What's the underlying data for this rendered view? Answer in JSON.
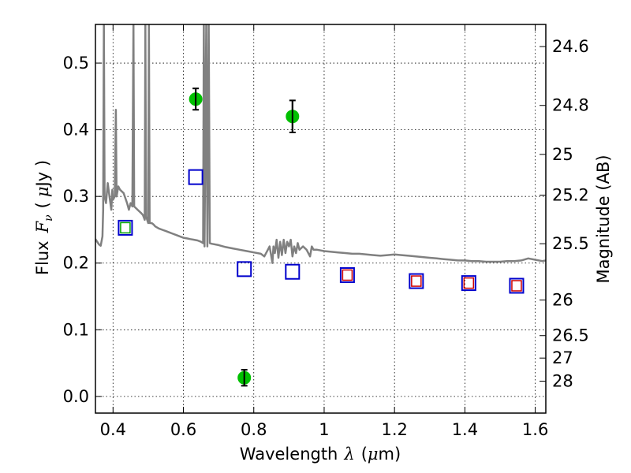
{
  "chart_data": {
    "type": "scatter",
    "xlabel_text": "Wavelength",
    "xlabel_symbol": "λ",
    "xlabel_unit_open": "(",
    "xlabel_unit_mu": "μ",
    "xlabel_unit_rest": "m)",
    "ylabel_text": "Flux",
    "ylabel_symbol": "F",
    "ylabel_sub": "ν",
    "ylabel_unit_open": "(",
    "ylabel_unit_mu": "μ",
    "ylabel_unit_rest": "Jy )",
    "y2label": "Magnitude (AB)",
    "xlim": [
      0.35,
      1.63
    ],
    "ylim": [
      -0.025,
      0.558
    ],
    "grid": true,
    "x_ticks": [
      {
        "value": 0.4,
        "label": "0.4"
      },
      {
        "value": 0.6,
        "label": "0.6"
      },
      {
        "value": 0.8,
        "label": "0.8"
      },
      {
        "value": 1.0,
        "label": "1"
      },
      {
        "value": 1.2,
        "label": "1.2"
      },
      {
        "value": 1.4,
        "label": "1.4"
      },
      {
        "value": 1.6,
        "label": "1.6"
      }
    ],
    "y_ticks": [
      {
        "value": 0.0,
        "label": "0.0"
      },
      {
        "value": 0.1,
        "label": "0.1"
      },
      {
        "value": 0.2,
        "label": "0.2"
      },
      {
        "value": 0.3,
        "label": "0.3"
      },
      {
        "value": 0.4,
        "label": "0.4"
      },
      {
        "value": 0.5,
        "label": "0.5"
      }
    ],
    "y2_ticks": [
      {
        "value": 24.6,
        "label": "24.6"
      },
      {
        "value": 24.8,
        "label": "24.8"
      },
      {
        "value": 25.0,
        "label": "25"
      },
      {
        "value": 25.2,
        "label": "25.2"
      },
      {
        "value": 25.5,
        "label": "25.5"
      },
      {
        "value": 26.0,
        "label": "26"
      },
      {
        "value": 26.5,
        "label": "26.5"
      },
      {
        "value": 27.0,
        "label": "27"
      },
      {
        "value": 28.0,
        "label": "28"
      }
    ],
    "series": [
      {
        "type": "line",
        "color": "#808080",
        "points": [
          [
            0.35,
            0.236
          ],
          [
            0.36,
            0.228
          ],
          [
            0.365,
            0.226
          ],
          [
            0.37,
            0.24
          ],
          [
            0.372,
            0.28
          ],
          [
            0.374,
            0.56
          ],
          [
            0.376,
            0.3
          ],
          [
            0.38,
            0.29
          ],
          [
            0.385,
            0.32
          ],
          [
            0.39,
            0.3
          ],
          [
            0.395,
            0.28
          ],
          [
            0.398,
            0.31
          ],
          [
            0.4,
            0.295
          ],
          [
            0.405,
            0.3
          ],
          [
            0.408,
            0.43
          ],
          [
            0.41,
            0.3
          ],
          [
            0.415,
            0.315
          ],
          [
            0.42,
            0.31
          ],
          [
            0.43,
            0.305
          ],
          [
            0.44,
            0.29
          ],
          [
            0.445,
            0.28
          ],
          [
            0.45,
            0.29
          ],
          [
            0.455,
            0.285
          ],
          [
            0.458,
            0.56
          ],
          [
            0.46,
            0.285
          ],
          [
            0.47,
            0.28
          ],
          [
            0.48,
            0.275
          ],
          [
            0.485,
            0.272
          ],
          [
            0.49,
            0.265
          ],
          [
            0.492,
            0.56
          ],
          [
            0.494,
            0.27
          ],
          [
            0.5,
            0.26
          ],
          [
            0.502,
            0.56
          ],
          [
            0.504,
            0.26
          ],
          [
            0.51,
            0.26
          ],
          [
            0.515,
            0.258
          ],
          [
            0.52,
            0.255
          ],
          [
            0.53,
            0.252
          ],
          [
            0.54,
            0.25
          ],
          [
            0.55,
            0.248
          ],
          [
            0.56,
            0.246
          ],
          [
            0.57,
            0.244
          ],
          [
            0.58,
            0.242
          ],
          [
            0.59,
            0.24
          ],
          [
            0.6,
            0.238
          ],
          [
            0.61,
            0.237
          ],
          [
            0.62,
            0.236
          ],
          [
            0.63,
            0.235
          ],
          [
            0.64,
            0.234
          ],
          [
            0.65,
            0.232
          ],
          [
            0.656,
            0.23
          ],
          [
            0.658,
            0.56
          ],
          [
            0.66,
            0.225
          ],
          [
            0.665,
            0.56
          ],
          [
            0.668,
            0.225
          ],
          [
            0.672,
            0.56
          ],
          [
            0.675,
            0.23
          ],
          [
            0.68,
            0.229
          ],
          [
            0.7,
            0.227
          ],
          [
            0.72,
            0.224
          ],
          [
            0.74,
            0.222
          ],
          [
            0.76,
            0.22
          ],
          [
            0.78,
            0.218
          ],
          [
            0.8,
            0.216
          ],
          [
            0.82,
            0.214
          ],
          [
            0.83,
            0.21
          ],
          [
            0.84,
            0.22
          ],
          [
            0.845,
            0.225
          ],
          [
            0.85,
            0.21
          ],
          [
            0.853,
            0.2
          ],
          [
            0.856,
            0.225
          ],
          [
            0.86,
            0.215
          ],
          [
            0.865,
            0.235
          ],
          [
            0.87,
            0.208
          ],
          [
            0.875,
            0.232
          ],
          [
            0.88,
            0.212
          ],
          [
            0.885,
            0.235
          ],
          [
            0.89,
            0.215
          ],
          [
            0.895,
            0.232
          ],
          [
            0.9,
            0.225
          ],
          [
            0.905,
            0.235
          ],
          [
            0.91,
            0.21
          ],
          [
            0.915,
            0.225
          ],
          [
            0.92,
            0.215
          ],
          [
            0.925,
            0.23
          ],
          [
            0.93,
            0.22
          ],
          [
            0.94,
            0.225
          ],
          [
            0.95,
            0.22
          ],
          [
            0.96,
            0.21
          ],
          [
            0.965,
            0.225
          ],
          [
            0.97,
            0.22
          ],
          [
            0.98,
            0.22
          ],
          [
            1.0,
            0.218
          ],
          [
            1.02,
            0.217
          ],
          [
            1.04,
            0.216
          ],
          [
            1.06,
            0.215
          ],
          [
            1.08,
            0.214
          ],
          [
            1.1,
            0.214
          ],
          [
            1.12,
            0.213
          ],
          [
            1.14,
            0.212
          ],
          [
            1.16,
            0.211
          ],
          [
            1.18,
            0.212
          ],
          [
            1.2,
            0.213
          ],
          [
            1.22,
            0.212
          ],
          [
            1.24,
            0.211
          ],
          [
            1.26,
            0.21
          ],
          [
            1.28,
            0.209
          ],
          [
            1.3,
            0.208
          ],
          [
            1.32,
            0.207
          ],
          [
            1.34,
            0.206
          ],
          [
            1.36,
            0.205
          ],
          [
            1.38,
            0.204
          ],
          [
            1.4,
            0.204
          ],
          [
            1.42,
            0.203
          ],
          [
            1.44,
            0.203
          ],
          [
            1.46,
            0.202
          ],
          [
            1.48,
            0.202
          ],
          [
            1.5,
            0.202
          ],
          [
            1.52,
            0.203
          ],
          [
            1.54,
            0.203
          ],
          [
            1.56,
            0.204
          ],
          [
            1.58,
            0.207
          ],
          [
            1.6,
            0.205
          ],
          [
            1.62,
            0.203
          ],
          [
            1.63,
            0.204
          ]
        ]
      },
      {
        "type": "scatter",
        "marker": "circle",
        "color": "#00c000",
        "points": [
          {
            "x": 0.635,
            "y": 0.446,
            "yerr": 0.016
          },
          {
            "x": 0.773,
            "y": 0.028,
            "yerr": 0.012
          },
          {
            "x": 0.91,
            "y": 0.42,
            "yerr": 0.024
          }
        ]
      },
      {
        "type": "scatter",
        "marker": "square-open",
        "color": "#0000cc",
        "points": [
          {
            "x": 0.435,
            "y": 0.253
          },
          {
            "x": 0.635,
            "y": 0.329
          },
          {
            "x": 0.773,
            "y": 0.191
          },
          {
            "x": 0.91,
            "y": 0.187
          },
          {
            "x": 1.066,
            "y": 0.182
          },
          {
            "x": 1.262,
            "y": 0.173
          },
          {
            "x": 1.411,
            "y": 0.17
          },
          {
            "x": 1.547,
            "y": 0.166
          }
        ]
      },
      {
        "type": "scatter",
        "marker": "square-open-small",
        "color": "#cc0000",
        "points": [
          {
            "x": 1.066,
            "y": 0.182
          },
          {
            "x": 1.262,
            "y": 0.173
          },
          {
            "x": 1.411,
            "y": 0.17
          },
          {
            "x": 1.547,
            "y": 0.166
          }
        ]
      },
      {
        "type": "scatter",
        "marker": "square-open-small",
        "color": "#00a000",
        "points": [
          {
            "x": 0.435,
            "y": 0.253
          }
        ]
      }
    ]
  }
}
